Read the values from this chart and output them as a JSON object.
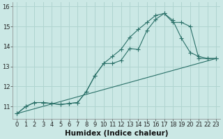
{
  "xlabel": "Humidex (Indice chaleur)",
  "xlim": [
    -0.5,
    23.5
  ],
  "ylim": [
    10.4,
    16.2
  ],
  "yticks": [
    11,
    12,
    13,
    14,
    15,
    16
  ],
  "xticks": [
    0,
    1,
    2,
    3,
    4,
    5,
    6,
    7,
    8,
    9,
    10,
    11,
    12,
    13,
    14,
    15,
    16,
    17,
    18,
    19,
    20,
    21,
    22,
    23
  ],
  "bg_color": "#cbe8e5",
  "grid_color": "#b0d4d0",
  "line_color": "#2a7068",
  "line1_x": [
    0,
    1,
    2,
    3,
    4,
    5,
    6,
    7,
    8,
    9,
    10,
    11,
    12,
    13,
    14,
    15,
    16,
    17,
    18,
    19,
    20,
    21,
    22,
    23
  ],
  "line1_y": [
    10.65,
    11.0,
    11.2,
    11.2,
    11.15,
    11.1,
    11.15,
    11.2,
    11.75,
    12.55,
    13.15,
    13.15,
    13.3,
    13.9,
    13.85,
    14.8,
    15.35,
    15.65,
    15.3,
    14.4,
    13.7,
    13.5,
    13.4,
    13.4
  ],
  "line2_x": [
    0,
    1,
    2,
    3,
    4,
    5,
    6,
    7,
    8,
    9,
    10,
    11,
    12,
    13,
    14,
    15,
    16,
    17,
    18,
    19,
    20,
    21,
    22,
    23
  ],
  "line2_y": [
    10.65,
    11.0,
    11.2,
    11.2,
    11.15,
    11.1,
    11.15,
    11.2,
    11.75,
    12.55,
    13.15,
    13.5,
    13.85,
    14.45,
    14.85,
    15.2,
    15.55,
    15.65,
    15.2,
    15.2,
    15.0,
    13.4,
    13.4,
    13.4
  ],
  "line3_x": [
    0,
    23
  ],
  "line3_y": [
    10.65,
    13.4
  ],
  "tick_fontsize": 6,
  "xlabel_fontsize": 7.5
}
